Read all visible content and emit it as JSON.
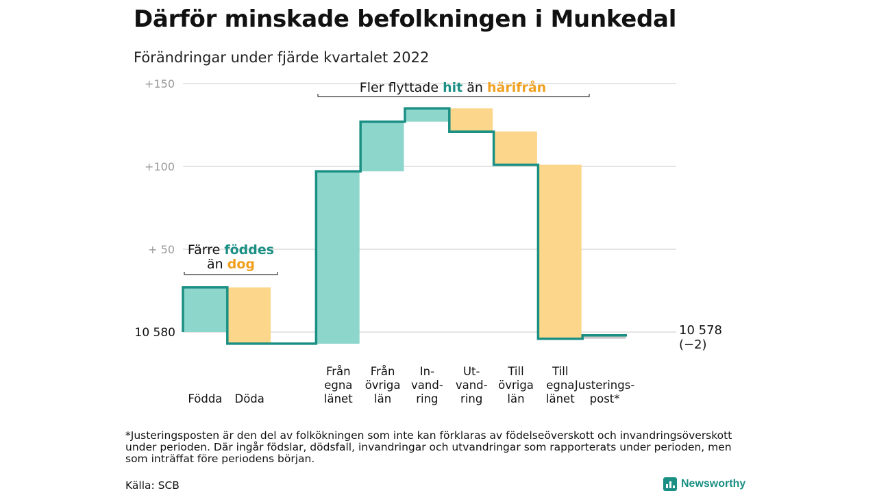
{
  "header": {
    "title": "Därför minskade befolkningen i Munkedal",
    "subtitle": "Förändringar under fjärde kvartalet 2022"
  },
  "colors": {
    "increase": "#8dd6cb",
    "decrease": "#fcd68a",
    "adjustment": "#c8c8c8",
    "line": "#1a8f83",
    "hit": "#1a8f83",
    "harifran": "#f0a020",
    "grid": "#dcdcdc"
  },
  "chart_data": {
    "type": "waterfall",
    "title": "Därför minskade befolkningen i Munkedal",
    "subtitle": "Förändringar under fjärde kvartalet 2022",
    "y_axis": {
      "min": -8,
      "max": 150,
      "ticks": [
        {
          "value": 150,
          "label": "+150"
        },
        {
          "value": 100,
          "label": "+100"
        },
        {
          "value": 50,
          "label": "+ 50"
        }
      ],
      "grid": true
    },
    "start": {
      "value": 0,
      "label": "10 580"
    },
    "end": {
      "value": -2,
      "label": "10 578",
      "change_label": "(−2)"
    },
    "steps": [
      {
        "category": "Födda",
        "lines": [
          "Födda"
        ],
        "change": 27,
        "kind": "increase"
      },
      {
        "category": "Döda",
        "lines": [
          "Döda"
        ],
        "change": -34,
        "kind": "decrease"
      },
      {
        "category": "",
        "lines": [],
        "change": 0,
        "kind": "gap"
      },
      {
        "category": "Från egna länet",
        "lines": [
          "Från",
          "egna",
          "länet"
        ],
        "change": 104,
        "kind": "increase"
      },
      {
        "category": "Från övriga län",
        "lines": [
          "Från",
          "övriga",
          "län"
        ],
        "change": 30,
        "kind": "increase"
      },
      {
        "category": "Invandring",
        "lines": [
          "In-",
          "vand-",
          "ring"
        ],
        "change": 8,
        "kind": "increase"
      },
      {
        "category": "Utvandring",
        "lines": [
          "Ut-",
          "vand-",
          "ring"
        ],
        "change": -14,
        "kind": "decrease"
      },
      {
        "category": "Till övriga län",
        "lines": [
          "Till",
          "övriga",
          "län"
        ],
        "change": -20,
        "kind": "decrease"
      },
      {
        "category": "Till egna länet",
        "lines": [
          "Till",
          "egna",
          "länet"
        ],
        "change": -105,
        "kind": "decrease"
      },
      {
        "category": "Justeringspost*",
        "lines": [
          "Justerings-",
          "post*"
        ],
        "change": 2,
        "kind": "adjustment"
      }
    ],
    "annotations": [
      {
        "id": "births",
        "line1_parts": [
          {
            "text": "Färre ",
            "color": "#111"
          },
          {
            "text": "föddes",
            "color": "#1a8f83",
            "bold": true
          }
        ],
        "line2_parts": [
          {
            "text": "än ",
            "color": "#111"
          },
          {
            "text": "dog",
            "color": "#f0a020",
            "bold": true
          }
        ]
      },
      {
        "id": "migration",
        "line1_parts": [
          {
            "text": "Fler flyttade ",
            "color": "#111"
          },
          {
            "text": "hit",
            "color": "#1a8f83",
            "bold": true
          },
          {
            "text": " än ",
            "color": "#111"
          },
          {
            "text": "härifrån",
            "color": "#f0a020",
            "bold": true
          }
        ]
      }
    ]
  },
  "footnote": "*Justeringsposten är den del av folkökningen som inte kan förklaras av födelseöverskott och invandringsöverskott under perioden. Där ingår födslar, dödsfall, invandringar och utvandringar som rapporterats under perioden, men som inträffat före periodens början.",
  "source": "Källa: SCB",
  "brand": {
    "name": "Newsworthy",
    "icon": "bar-chart-icon"
  }
}
